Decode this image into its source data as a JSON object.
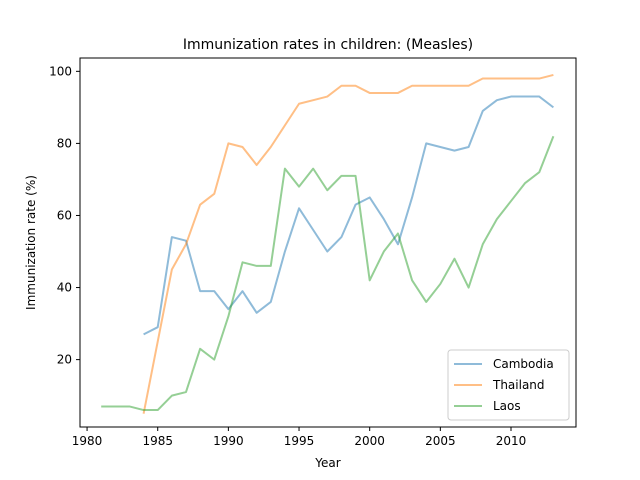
{
  "chart_data": {
    "type": "line",
    "title": "Immunization rates in children: (Measles)",
    "xlabel": "Year",
    "ylabel": "Immunization rate (%)",
    "xlim": [
      1979.5,
      2014.6
    ],
    "ylim": [
      1.3,
      103.7
    ],
    "xticks": [
      1980,
      1985,
      1990,
      1995,
      2000,
      2005,
      2010
    ],
    "yticks": [
      20,
      40,
      60,
      80,
      100
    ],
    "grid": false,
    "legend_position": "lower right",
    "series": [
      {
        "name": "Cambodia",
        "color": "#1f77b4",
        "x": [
          1984,
          1985,
          1986,
          1987,
          1988,
          1989,
          1990,
          1991,
          1992,
          1993,
          1994,
          1995,
          1996,
          1997,
          1998,
          1999,
          2000,
          2001,
          2002,
          2003,
          2004,
          2005,
          2006,
          2007,
          2008,
          2009,
          2010,
          2011,
          2012,
          2013
        ],
        "y": [
          27,
          29,
          54,
          53,
          39,
          39,
          34,
          39,
          33,
          36,
          50,
          62,
          56,
          50,
          54,
          63,
          65,
          59,
          52,
          65,
          80,
          79,
          78,
          79,
          89,
          92,
          93,
          93,
          93,
          90
        ]
      },
      {
        "name": "Thailand",
        "color": "#ff7f0e",
        "x": [
          1984,
          1985,
          1986,
          1987,
          1988,
          1989,
          1990,
          1991,
          1992,
          1993,
          1994,
          1995,
          1996,
          1997,
          1998,
          1999,
          2000,
          2001,
          2002,
          2003,
          2004,
          2005,
          2006,
          2007,
          2008,
          2009,
          2010,
          2011,
          2012,
          2013
        ],
        "y": [
          5,
          25,
          45,
          52,
          63,
          66,
          80,
          79,
          74,
          79,
          85,
          91,
          92,
          93,
          96,
          96,
          94,
          94,
          94,
          96,
          96,
          96,
          96,
          96,
          98,
          98,
          98,
          98,
          98,
          99
        ]
      },
      {
        "name": "Laos",
        "color": "#2ca02c",
        "x": [
          1981,
          1982,
          1983,
          1984,
          1985,
          1986,
          1987,
          1988,
          1989,
          1990,
          1991,
          1992,
          1993,
          1994,
          1995,
          1996,
          1997,
          1998,
          1999,
          2000,
          2001,
          2002,
          2003,
          2004,
          2005,
          2006,
          2007,
          2008,
          2009,
          2010,
          2011,
          2012,
          2013
        ],
        "y": [
          7,
          7,
          7,
          6,
          6,
          10,
          11,
          23,
          20,
          32,
          47,
          46,
          46,
          73,
          68,
          73,
          67,
          71,
          71,
          42,
          50,
          55,
          42,
          36,
          41,
          48,
          40,
          52,
          59,
          64,
          69,
          72,
          82
        ]
      }
    ]
  }
}
